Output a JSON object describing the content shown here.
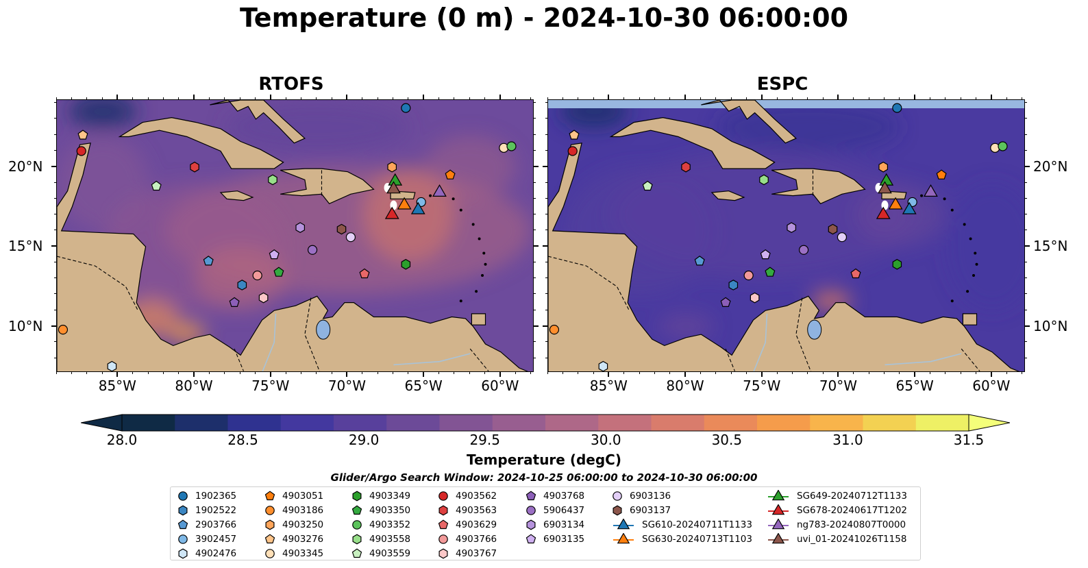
{
  "title": "Temperature (0 m) - 2024-10-30 06:00:00",
  "panels": [
    {
      "name": "RTOFS",
      "theme": "warm"
    },
    {
      "name": "ESPC",
      "theme": "cool"
    }
  ],
  "axes": {
    "lon_ticks": [
      "85°W",
      "80°W",
      "75°W",
      "70°W",
      "65°W",
      "60°W"
    ],
    "lat_ticks": [
      "20°N",
      "15°N",
      "10°N"
    ]
  },
  "colorbar": {
    "ticks": [
      "28.0",
      "28.5",
      "29.0",
      "29.5",
      "30.0",
      "30.5",
      "31.0",
      "31.5"
    ],
    "label": "Temperature (degC)",
    "colors": [
      "#0f2a45",
      "#1d2f6b",
      "#2f3290",
      "#43389f",
      "#58409c",
      "#6c4a98",
      "#825494",
      "#985e90",
      "#ae6888",
      "#c4717c",
      "#d97c6c",
      "#ea8a5a",
      "#f59c4b",
      "#f8b44b",
      "#f3d152",
      "#eef065"
    ]
  },
  "legend": {
    "title": "Glider/Argo Search Window: 2024-10-25 06:00:00 to 2024-10-30 06:00:00",
    "items": [
      {
        "label": "1902365",
        "marker": "circle",
        "color": "#1f77b4"
      },
      {
        "label": "1902522",
        "marker": "hexagon",
        "color": "#3b86c2"
      },
      {
        "label": "2903766",
        "marker": "pentagon",
        "color": "#5799d3"
      },
      {
        "label": "3902457",
        "marker": "circle",
        "color": "#7fb8e6"
      },
      {
        "label": "4902476",
        "marker": "hexagon",
        "color": "#cfe6f6"
      },
      {
        "label": "4903051",
        "marker": "pentagon",
        "color": "#ff7f0e"
      },
      {
        "label": "4903186",
        "marker": "circle",
        "color": "#ff8f2e"
      },
      {
        "label": "4903250",
        "marker": "hexagon",
        "color": "#ffa55a"
      },
      {
        "label": "4903276",
        "marker": "pentagon",
        "color": "#ffc489"
      },
      {
        "label": "4903345",
        "marker": "circle",
        "color": "#ffe0b8"
      },
      {
        "label": "4903349",
        "marker": "hexagon",
        "color": "#2ca02c"
      },
      {
        "label": "4903350",
        "marker": "pentagon",
        "color": "#34aa40"
      },
      {
        "label": "4903352",
        "marker": "circle",
        "color": "#5cc35c"
      },
      {
        "label": "4903558",
        "marker": "hexagon",
        "color": "#98df8a"
      },
      {
        "label": "4903559",
        "marker": "pentagon",
        "color": "#c8f0c0"
      },
      {
        "label": "4903562",
        "marker": "circle",
        "color": "#d62728"
      },
      {
        "label": "4903563",
        "marker": "hexagon",
        "color": "#de4040"
      },
      {
        "label": "4903629",
        "marker": "pentagon",
        "color": "#e86868"
      },
      {
        "label": "4903766",
        "marker": "circle",
        "color": "#f29a9a"
      },
      {
        "label": "4903767",
        "marker": "hexagon",
        "color": "#fbc8c8"
      },
      {
        "label": "4903768",
        "marker": "pentagon",
        "color": "#8c5fb8"
      },
      {
        "label": "5906437",
        "marker": "circle",
        "color": "#9b70c4"
      },
      {
        "label": "6903134",
        "marker": "hexagon",
        "color": "#b592dc"
      },
      {
        "label": "6903135",
        "marker": "pentagon",
        "color": "#cfb0f0"
      },
      {
        "label": "6903136",
        "marker": "circle",
        "color": "#e3cff7"
      },
      {
        "label": "6903137",
        "marker": "hexagon",
        "color": "#8c564b"
      },
      {
        "label": "SG610-20240711T1133",
        "marker": "triangle",
        "color": "#1f77b4"
      },
      {
        "label": "SG630-20240713T1103",
        "marker": "triangle",
        "color": "#ff7f0e"
      },
      {
        "label": "SG649-20240712T1133",
        "marker": "triangle",
        "color": "#2ca02c"
      },
      {
        "label": "SG678-20240617T1202",
        "marker": "triangle",
        "color": "#d62728"
      },
      {
        "label": "ng783-20240807T0000",
        "marker": "triangle",
        "color": "#9467bd"
      },
      {
        "label": "uvi_01-20241026T1158",
        "marker": "triangle",
        "color": "#8c564b"
      }
    ]
  },
  "platforms": [
    {
      "id": "1902365",
      "lon": -66.2,
      "lat": 23.7
    },
    {
      "id": "4903186",
      "lon": -88.6,
      "lat": 9.8
    },
    {
      "id": "4903276",
      "lon": -87.3,
      "lat": 22.0
    },
    {
      "id": "4903562",
      "lon": -87.4,
      "lat": 21.0
    },
    {
      "id": "4903563",
      "lon": -80.0,
      "lat": 20.0
    },
    {
      "id": "4903559",
      "lon": -82.5,
      "lat": 18.8
    },
    {
      "id": "4903558",
      "lon": -74.9,
      "lat": 19.2
    },
    {
      "id": "4903345",
      "lon": -59.8,
      "lat": 21.2
    },
    {
      "id": "4903352",
      "lon": -59.3,
      "lat": 21.3
    },
    {
      "id": "4903051",
      "lon": -63.3,
      "lat": 19.5
    },
    {
      "id": "4903250",
      "lon": -67.1,
      "lat": 20.0
    },
    {
      "id": "3902457",
      "lon": -65.2,
      "lat": 17.8
    },
    {
      "id": "6903134",
      "lon": -73.1,
      "lat": 16.2
    },
    {
      "id": "6903137",
      "lon": -70.4,
      "lat": 16.1
    },
    {
      "id": "6903136",
      "lon": -69.8,
      "lat": 15.6
    },
    {
      "id": "5906437",
      "lon": -72.3,
      "lat": 14.8
    },
    {
      "id": "6903135",
      "lon": -74.8,
      "lat": 14.5
    },
    {
      "id": "2903766",
      "lon": -79.1,
      "lat": 14.1
    },
    {
      "id": "4903349",
      "lon": -66.2,
      "lat": 13.9
    },
    {
      "id": "4903629",
      "lon": -68.9,
      "lat": 13.3
    },
    {
      "id": "4903350",
      "lon": -74.5,
      "lat": 13.4
    },
    {
      "id": "4903766",
      "lon": -75.9,
      "lat": 13.2
    },
    {
      "id": "1902522",
      "lon": -76.9,
      "lat": 12.6
    },
    {
      "id": "4903767",
      "lon": -75.5,
      "lat": 11.8
    },
    {
      "id": "4903768",
      "lon": -77.4,
      "lat": 11.5
    },
    {
      "id": "4902476",
      "lon": -85.4,
      "lat": 7.5
    },
    {
      "id": "SG649-20240712T1133",
      "lon": -66.9,
      "lat": 19.1
    },
    {
      "id": "uvi_01-20241026T1158",
      "lon": -67.0,
      "lat": 18.6
    },
    {
      "id": "SG630-20240713T1103",
      "lon": -66.3,
      "lat": 17.6
    },
    {
      "id": "SG610-20240711T1133",
      "lon": -65.4,
      "lat": 17.3
    },
    {
      "id": "SG678-20240617T1202",
      "lon": -67.1,
      "lat": 17.0
    },
    {
      "id": "ng783-20240807T0000",
      "lon": -64.0,
      "lat": 18.4
    }
  ]
}
